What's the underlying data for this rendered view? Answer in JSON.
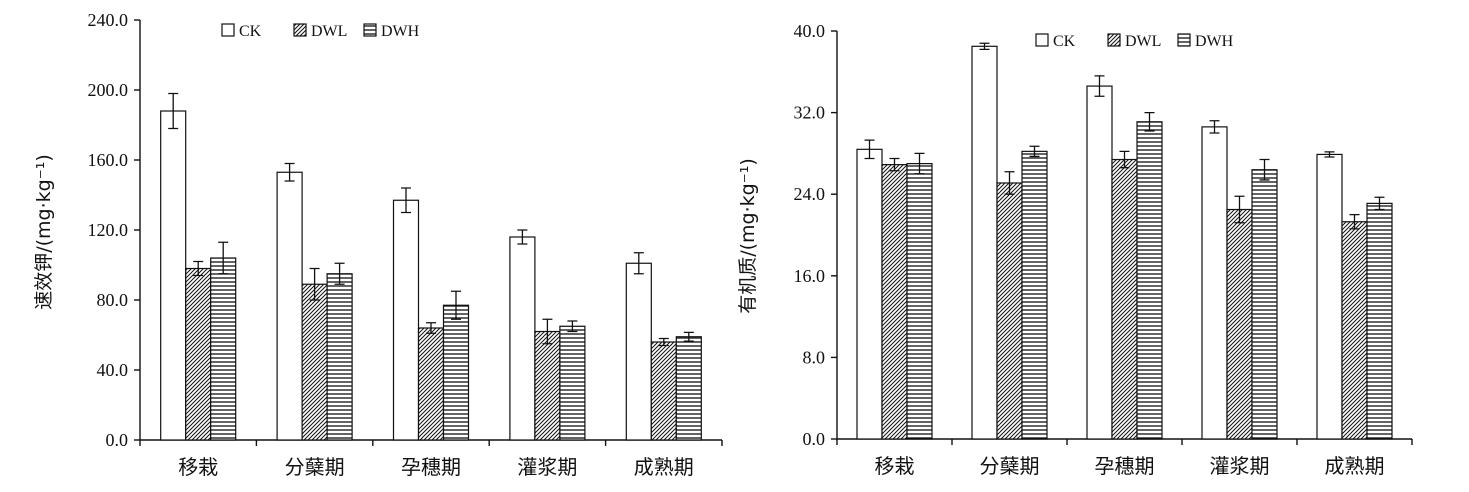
{
  "chart_data": [
    {
      "type": "bar",
      "categories": [
        "移栽",
        "分蘖期",
        "孕穗期",
        "灌浆期",
        "成熟期"
      ],
      "series": [
        {
          "name": "CK",
          "values": [
            188,
            153,
            137,
            116,
            101
          ],
          "errors": [
            10,
            5,
            7,
            4,
            6
          ]
        },
        {
          "name": "DWL",
          "values": [
            98,
            89,
            64,
            62,
            56
          ],
          "errors": [
            4,
            9,
            3,
            7,
            2
          ]
        },
        {
          "name": "DWH",
          "values": [
            104,
            95,
            77,
            65,
            59
          ],
          "errors": [
            9,
            6,
            8,
            3,
            2.5
          ]
        }
      ],
      "ylabel": "速效钾/(mg·kg⁻¹)",
      "ylim": [
        0,
        240
      ],
      "yticks": [
        "0.0",
        "40.0",
        "80.0",
        "120.0",
        "160.0",
        "200.0",
        "240.0"
      ],
      "legend": "top-center"
    },
    {
      "type": "bar",
      "categories": [
        "移栽",
        "分蘖期",
        "孕穗期",
        "灌浆期",
        "成熟期"
      ],
      "series": [
        {
          "name": "CK",
          "values": [
            28.4,
            38.5,
            34.6,
            30.6,
            27.9
          ],
          "errors": [
            0.9,
            0.3,
            1.0,
            0.6,
            0.25
          ]
        },
        {
          "name": "DWL",
          "values": [
            26.9,
            25.1,
            27.4,
            22.5,
            21.3
          ],
          "errors": [
            0.6,
            1.1,
            0.8,
            1.3,
            0.7
          ]
        },
        {
          "name": "DWH",
          "values": [
            27.0,
            28.2,
            31.1,
            26.4,
            23.1
          ],
          "errors": [
            1.0,
            0.5,
            0.9,
            1.0,
            0.6
          ]
        }
      ],
      "ylabel": "有机质/(mg·kg⁻¹)",
      "ylim": [
        0,
        40
      ],
      "yticks": [
        "0.0",
        "8.0",
        "16.0",
        "24.0",
        "32.0",
        "40.0"
      ],
      "legend": "top-center"
    }
  ]
}
